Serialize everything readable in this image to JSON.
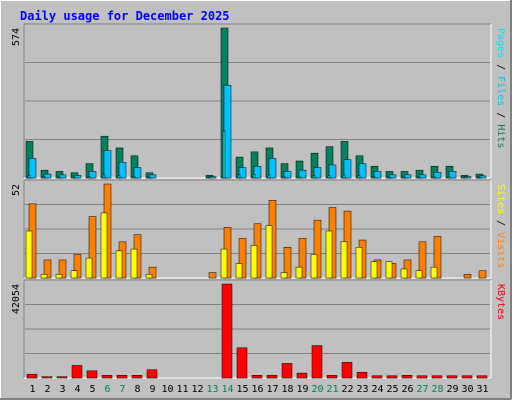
{
  "chart_data": {
    "type": "bar",
    "title": "Daily usage for December 2025",
    "categories": [
      "1",
      "2",
      "3",
      "4",
      "5",
      "6",
      "7",
      "8",
      "9",
      "10",
      "11",
      "12",
      "13",
      "14",
      "15",
      "16",
      "17",
      "18",
      "19",
      "20",
      "21",
      "22",
      "23",
      "24",
      "25",
      "26",
      "27",
      "28",
      "29",
      "30",
      "31"
    ],
    "weekend_days": [
      "6",
      "7",
      "13",
      "14",
      "20",
      "21",
      "27",
      "28"
    ],
    "grid": true,
    "panels": [
      {
        "id": "hits",
        "ymax": 574,
        "ymax_label": "574",
        "legend": [
          "Pages",
          "Files",
          "Hits"
        ],
        "series": [
          {
            "name": "Hits",
            "values": [
              140,
              30,
              25,
              20,
              55,
              160,
              115,
              85,
              20,
              0,
              0,
              0,
              10,
              574,
              80,
              100,
              115,
              55,
              65,
              95,
              120,
              140,
              85,
              45,
              25,
              25,
              30,
              45,
              45,
              10,
              15
            ]
          },
          {
            "name": "Files",
            "values": [
              75,
              15,
              12,
              10,
              25,
              105,
              60,
              40,
              12,
              0,
              0,
              0,
              5,
              355,
              40,
              45,
              75,
              25,
              30,
              40,
              50,
              70,
              55,
              25,
              12,
              12,
              12,
              22,
              25,
              5,
              8
            ]
          },
          {
            "name": "Pages",
            "values": [
              10,
              5,
              4,
              3,
              5,
              12,
              10,
              7,
              3,
              0,
              0,
              0,
              2,
              180,
              12,
              14,
              12,
              6,
              7,
              9,
              10,
              12,
              10,
              6,
              4,
              4,
              4,
              6,
              6,
              2,
              3
            ]
          }
        ]
      },
      {
        "id": "visits",
        "ymax": 52,
        "ymax_label": "52",
        "legend": [
          "Sites",
          "Visits"
        ],
        "series": [
          {
            "name": "Visits",
            "values": [
              41,
              10,
              10,
              13,
              34,
              52,
              20,
              24,
              6,
              0,
              0,
              0,
              3,
              28,
              22,
              30,
              43,
              17,
              22,
              32,
              39,
              37,
              21,
              10,
              8,
              10,
              20,
              23,
              0,
              2,
              4
            ]
          },
          {
            "name": "Sites",
            "values": [
              26,
              2,
              2,
              4,
              11,
              36,
              15,
              16,
              2,
              0,
              0,
              0,
              0,
              16,
              8,
              18,
              29,
              3,
              6,
              13,
              26,
              20,
              17,
              9,
              9,
              5,
              4,
              6,
              0,
              0,
              0
            ]
          }
        ]
      },
      {
        "id": "kbytes",
        "ymax": 42054,
        "ymax_label": "42054",
        "legend": [
          "KBytes"
        ],
        "series": [
          {
            "name": "KBytes",
            "values": [
              1700,
              600,
              600,
              5600,
              3200,
              1200,
              1200,
              1200,
              3700,
              0,
              0,
              0,
              0,
              42054,
              13500,
              1200,
              1200,
              6500,
              2200,
              14500,
              1200,
              7000,
              2600,
              1000,
              1000,
              1200,
              1000,
              1000,
              1000,
              1000,
              1000
            ]
          }
        ]
      }
    ]
  },
  "colors": {
    "background": "#c0c0c0",
    "plot_bg": "#c0c0c0",
    "title": "#0000ff",
    "grid": "#808080",
    "hits": "#00805c",
    "files": "#00c0ff",
    "pages": "#00e0ff",
    "visits": "#ff8000",
    "sites": "#ffff00",
    "kbytes": "#ff0000",
    "weekday_label": "#000000",
    "weekend_label": "#00805c"
  }
}
